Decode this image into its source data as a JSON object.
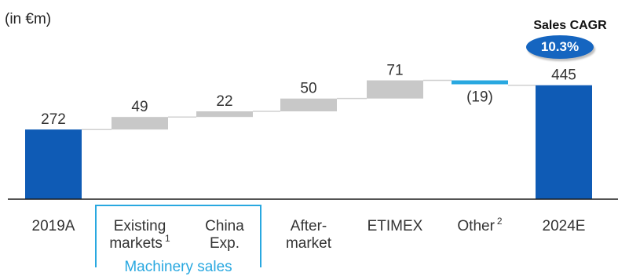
{
  "unit_label": "(in €m)",
  "cagr": {
    "label": "Sales CAGR",
    "value": "10.3%"
  },
  "group_label": "Machinery sales",
  "chart_data": {
    "type": "waterfall",
    "steps": [
      {
        "key": "2019A",
        "value": 272,
        "kind": "total",
        "label": "272",
        "category": [
          "2019A"
        ],
        "footnote": ""
      },
      {
        "key": "existing",
        "value": 49,
        "kind": "increase",
        "label": "49",
        "category": [
          "Existing",
          "markets"
        ],
        "footnote": "1"
      },
      {
        "key": "china",
        "value": 22,
        "kind": "increase",
        "label": "22",
        "category": [
          "China",
          "Exp."
        ],
        "footnote": ""
      },
      {
        "key": "aftermarket",
        "value": 50,
        "kind": "increase",
        "label": "50",
        "category": [
          "After-",
          "market"
        ],
        "footnote": ""
      },
      {
        "key": "etimex",
        "value": 71,
        "kind": "increase",
        "label": "71",
        "category": [
          "ETIMEX"
        ],
        "footnote": ""
      },
      {
        "key": "other",
        "value": -19,
        "kind": "decrease",
        "label": "(19)",
        "category": [
          "Other"
        ],
        "footnote": "2"
      },
      {
        "key": "2024E",
        "value": 445,
        "kind": "total",
        "label": "445",
        "category": [
          "2024E"
        ],
        "footnote": ""
      }
    ],
    "colors": {
      "total": "#0f5bb5",
      "increase": "#c8c8c8",
      "decrease": "#29a8e0",
      "connector": "#d0d0d0",
      "baseline": "#1a1a1a"
    }
  }
}
